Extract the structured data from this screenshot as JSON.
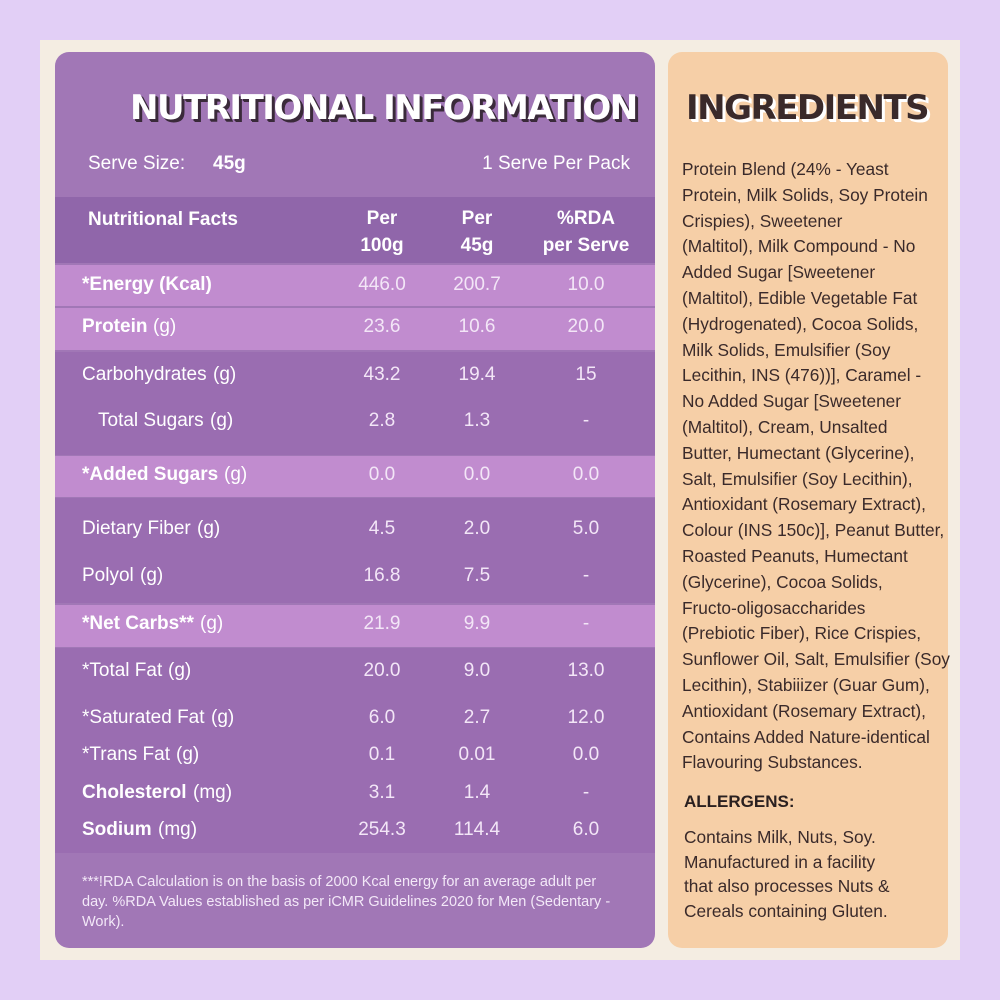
{
  "nutrition": {
    "title": "NUTRITIONAL INFORMATION",
    "serve_size_label": "Serve Size:",
    "serve_size": "45g",
    "serves": "1 Serve Per Pack",
    "header": [
      "Nutritional Facts",
      "Per\n100g",
      "Per\n45g",
      "%RDA\nper Serve"
    ],
    "rows": [
      {
        "name": "*Energy (Kcal)",
        "unit": "",
        "per100g": "446.0",
        "per45g": "200.7",
        "rda": "10.0",
        "highlight": true,
        "bold": true
      },
      {
        "name": "Protein",
        "unit": "(g)",
        "per100g": "23.6",
        "per45g": "10.6",
        "rda": "20.0",
        "highlight": true,
        "bold": true
      },
      {
        "name": "Carbohydrates",
        "unit": "(g)",
        "per100g": "43.2",
        "per45g": "19.4",
        "rda": "15",
        "highlight": false,
        "bold": false
      },
      {
        "name": "Total Sugars",
        "unit": "(g)",
        "per100g": "2.8",
        "per45g": "1.3",
        "rda": "-",
        "highlight": false,
        "bold": false,
        "indent": true
      },
      {
        "name": "*Added Sugars",
        "unit": "(g)",
        "per100g": "0.0",
        "per45g": "0.0",
        "rda": "0.0",
        "highlight": true,
        "bold": true
      },
      {
        "name": "Dietary Fiber",
        "unit": "(g)",
        "per100g": "4.5",
        "per45g": "2.0",
        "rda": "5.0",
        "highlight": false,
        "bold": false
      },
      {
        "name": "Polyol",
        "unit": "(g)",
        "per100g": "16.8",
        "per45g": "7.5",
        "rda": "-",
        "highlight": false,
        "bold": false
      },
      {
        "name": "*Net Carbs**",
        "unit": "(g)",
        "per100g": "21.9",
        "per45g": "9.9",
        "rda": "-",
        "highlight": true,
        "bold": true
      },
      {
        "name": "*Total Fat",
        "unit": "(g)",
        "per100g": "20.0",
        "per45g": "9.0",
        "rda": "13.0",
        "highlight": false,
        "bold": false
      },
      {
        "name": "*Saturated Fat",
        "unit": "(g)",
        "per100g": "6.0",
        "per45g": "2.7",
        "rda": "12.0",
        "highlight": false,
        "bold": false
      },
      {
        "name": "*Trans Fat",
        "unit": "(g)",
        "per100g": "0.1",
        "per45g": "0.01",
        "rda": "0.0",
        "highlight": false,
        "bold": false
      },
      {
        "name": "Cholesterol",
        "unit": "(mg)",
        "per100g": "3.1",
        "per45g": "1.4",
        "rda": "-",
        "highlight": false,
        "bold": true
      },
      {
        "name": "Sodium",
        "unit": "(mg)",
        "per100g": "254.3",
        "per45g": "114.4",
        "rda": "6.0",
        "highlight": false,
        "bold": true
      }
    ],
    "footnote": "***!RDA Calculation is on the basis of 2000 Kcal energy for an average adult per day. %RDA Values established as per iCMR Guidelines 2020 for Men (Sedentary - Work)."
  },
  "ingredients": {
    "title": "INGREDIENTS",
    "lines": [
      "Protein Blend (24% - Yeast",
      "Protein, Milk Solids, Soy Protein",
      "Crispies), Sweetener",
      "(Maltitol), Milk Compound - No",
      "Added Sugar [Sweetener",
      "(Maltitol), Edible Vegetable Fat",
      "(Hydrogenated), Cocoa Solids,",
      "Milk Solids, Emulsifier (Soy",
      "Lecithin, INS (476))], Caramel -",
      "No Added Sugar [Sweetener",
      "(Maltitol), Cream, Unsalted",
      "Butter, Humectant (Glycerine),",
      "Salt, Emulsifier (Soy Lecithin),",
      "Antioxidant (Rosemary Extract),",
      "Colour (INS 150c)], Peanut Butter,",
      "Roasted Peanuts, Humectant",
      "(Glycerine), Cocoa Solids,",
      "Fructo-oligosaccharides",
      "(Prebiotic Fiber), Rice Crispies,",
      "Sunflower Oil, Salt, Emulsifier (Soy",
      "Lecithin), Stabiiizer (Guar Gum),",
      "Antioxidant (Rosemary Extract),",
      "Contains Added Nature-identical",
      "Flavouring Substances."
    ],
    "allergens_title": "ALLERGENS:",
    "allergens_lines": [
      "Contains Milk, Nuts, Soy.",
      "Manufactured in a facility",
      "that also processes Nuts &",
      "Cereals containing Gluten."
    ]
  }
}
